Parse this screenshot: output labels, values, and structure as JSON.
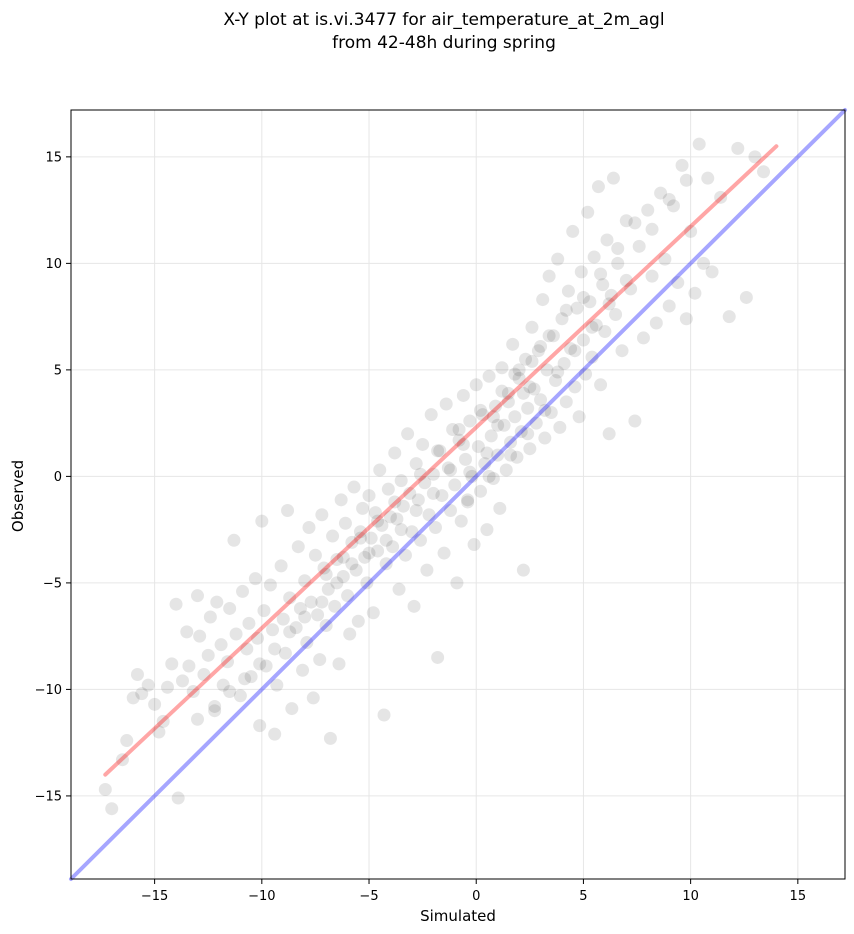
{
  "chart_data": {
    "type": "scatter",
    "title": "X-Y plot at is.vi.3477 for air_temperature_at_2m_agl",
    "subtitle": "from 42-48h during spring",
    "xlabel": "Simulated",
    "ylabel": "Observed",
    "xlim": [
      -18.9,
      17.2
    ],
    "ylim": [
      -18.9,
      17.2
    ],
    "xticks": [
      -15,
      -10,
      -5,
      0,
      5,
      10,
      15
    ],
    "yticks": [
      -15,
      -10,
      -5,
      0,
      5,
      10,
      15
    ],
    "xtick_labels": [
      "−15",
      "−10",
      "−5",
      "0",
      "5",
      "10",
      "15"
    ],
    "ytick_labels": [
      "−15",
      "−10",
      "−5",
      "0",
      "5",
      "10",
      "15"
    ],
    "grid": true,
    "point_color": "#000000",
    "point_alpha": 0.1,
    "points": [
      [
        -17.3,
        -14.7
      ],
      [
        -17.0,
        -15.6
      ],
      [
        -16.5,
        -13.3
      ],
      [
        -16.3,
        -12.4
      ],
      [
        -16.0,
        -10.4
      ],
      [
        -15.8,
        -9.3
      ],
      [
        -15.6,
        -10.2
      ],
      [
        -15.3,
        -9.8
      ],
      [
        -15.0,
        -10.7
      ],
      [
        -14.8,
        -12.0
      ],
      [
        -14.6,
        -11.5
      ],
      [
        -14.4,
        -9.9
      ],
      [
        -14.2,
        -8.8
      ],
      [
        -14.0,
        -6.0
      ],
      [
        -13.9,
        -15.1
      ],
      [
        -13.7,
        -9.6
      ],
      [
        -13.5,
        -7.3
      ],
      [
        -13.4,
        -8.9
      ],
      [
        -13.2,
        -10.1
      ],
      [
        -13.0,
        -5.6
      ],
      [
        -12.9,
        -7.5
      ],
      [
        -12.7,
        -9.3
      ],
      [
        -12.5,
        -8.4
      ],
      [
        -12.4,
        -6.6
      ],
      [
        -12.2,
        -11.0
      ],
      [
        -12.1,
        -5.9
      ],
      [
        -11.9,
        -7.9
      ],
      [
        -11.8,
        -9.8
      ],
      [
        -11.6,
        -8.7
      ],
      [
        -11.5,
        -6.2
      ],
      [
        -11.3,
        -3.0
      ],
      [
        -11.2,
        -7.4
      ],
      [
        -11.0,
        -10.3
      ],
      [
        -10.9,
        -5.4
      ],
      [
        -10.7,
        -8.1
      ],
      [
        -10.6,
        -6.9
      ],
      [
        -10.5,
        -9.4
      ],
      [
        -10.3,
        -4.8
      ],
      [
        -10.2,
        -7.6
      ],
      [
        -10.1,
        -11.7
      ],
      [
        -10.0,
        -2.1
      ],
      [
        -9.9,
        -6.3
      ],
      [
        -9.8,
        -8.9
      ],
      [
        -9.6,
        -5.1
      ],
      [
        -9.5,
        -7.2
      ],
      [
        -9.4,
        -12.1
      ],
      [
        -9.3,
        -9.8
      ],
      [
        -9.1,
        -4.2
      ],
      [
        -9.0,
        -6.7
      ],
      [
        -8.9,
        -8.3
      ],
      [
        -8.8,
        -1.6
      ],
      [
        -8.7,
        -5.7
      ],
      [
        -8.6,
        -10.9
      ],
      [
        -8.4,
        -7.1
      ],
      [
        -8.3,
        -3.3
      ],
      [
        -8.2,
        -6.2
      ],
      [
        -8.1,
        -9.1
      ],
      [
        -8.0,
        -4.9
      ],
      [
        -7.9,
        -7.8
      ],
      [
        -7.8,
        -2.4
      ],
      [
        -7.7,
        -5.9
      ],
      [
        -7.6,
        -10.4
      ],
      [
        -7.5,
        -3.7
      ],
      [
        -7.4,
        -6.5
      ],
      [
        -7.3,
        -8.6
      ],
      [
        -7.2,
        -1.8
      ],
      [
        -7.1,
        -4.3
      ],
      [
        -7.0,
        -7.0
      ],
      [
        -6.9,
        -5.3
      ],
      [
        -6.8,
        -12.3
      ],
      [
        -6.7,
        -2.8
      ],
      [
        -6.6,
        -6.1
      ],
      [
        -6.5,
        -3.9
      ],
      [
        -6.4,
        -8.8
      ],
      [
        -6.3,
        -1.1
      ],
      [
        -6.2,
        -4.7
      ],
      [
        -6.1,
        -2.2
      ],
      [
        -6.0,
        -5.6
      ],
      [
        -5.9,
        -7.4
      ],
      [
        -5.8,
        -3.1
      ],
      [
        -5.7,
        -0.5
      ],
      [
        -5.6,
        -4.4
      ],
      [
        -5.5,
        -6.8
      ],
      [
        -5.4,
        -2.6
      ],
      [
        -5.3,
        -1.5
      ],
      [
        -5.2,
        -3.8
      ],
      [
        -5.1,
        -5.0
      ],
      [
        -5.0,
        -0.9
      ],
      [
        -4.9,
        -2.9
      ],
      [
        -4.8,
        -6.4
      ],
      [
        -4.7,
        -1.7
      ],
      [
        -4.6,
        -3.5
      ],
      [
        -4.5,
        0.3
      ],
      [
        -4.4,
        -2.3
      ],
      [
        -4.3,
        -11.2
      ],
      [
        -4.2,
        -4.1
      ],
      [
        -4.1,
        -0.6
      ],
      [
        -4.0,
        -1.9
      ],
      [
        -3.9,
        -3.3
      ],
      [
        -3.8,
        1.1
      ],
      [
        -3.7,
        -2.0
      ],
      [
        -3.6,
        -5.3
      ],
      [
        -3.5,
        -0.2
      ],
      [
        -3.4,
        -1.4
      ],
      [
        -3.3,
        -3.7
      ],
      [
        -3.2,
        2.0
      ],
      [
        -3.1,
        -0.8
      ],
      [
        -3.0,
        -2.6
      ],
      [
        -2.9,
        -6.1
      ],
      [
        -2.8,
        0.6
      ],
      [
        -2.7,
        -1.1
      ],
      [
        -2.6,
        -3.0
      ],
      [
        -2.5,
        1.5
      ],
      [
        -2.4,
        -0.3
      ],
      [
        -2.3,
        -4.4
      ],
      [
        -2.2,
        -1.8
      ],
      [
        -2.1,
        2.9
      ],
      [
        -2.0,
        0.1
      ],
      [
        -1.9,
        -2.4
      ],
      [
        -1.8,
        -8.5
      ],
      [
        -1.7,
        1.2
      ],
      [
        -1.6,
        -0.9
      ],
      [
        -1.5,
        -3.6
      ],
      [
        -1.4,
        3.4
      ],
      [
        -1.3,
        0.4
      ],
      [
        -1.2,
        -1.6
      ],
      [
        -1.1,
        2.2
      ],
      [
        -1.0,
        -0.4
      ],
      [
        -0.9,
        -5.0
      ],
      [
        -0.8,
        1.7
      ],
      [
        -0.7,
        -2.1
      ],
      [
        -0.6,
        3.8
      ],
      [
        -0.5,
        0.8
      ],
      [
        -0.4,
        -1.2
      ],
      [
        -0.3,
        2.6
      ],
      [
        -0.2,
        0.0
      ],
      [
        -0.1,
        -3.2
      ],
      [
        0.0,
        4.3
      ],
      [
        0.1,
        1.4
      ],
      [
        0.2,
        -0.7
      ],
      [
        0.3,
        2.9
      ],
      [
        0.4,
        0.6
      ],
      [
        0.5,
        -2.5
      ],
      [
        0.6,
        4.7
      ],
      [
        0.7,
        1.9
      ],
      [
        0.8,
        -0.1
      ],
      [
        0.9,
        3.3
      ],
      [
        1.0,
        1.0
      ],
      [
        1.1,
        -1.5
      ],
      [
        1.2,
        5.1
      ],
      [
        1.3,
        2.4
      ],
      [
        1.4,
        0.3
      ],
      [
        1.5,
        3.9
      ],
      [
        1.6,
        1.6
      ],
      [
        1.7,
        6.2
      ],
      [
        1.8,
        2.8
      ],
      [
        1.9,
        0.9
      ],
      [
        2.0,
        4.6
      ],
      [
        2.1,
        2.1
      ],
      [
        2.2,
        -4.4
      ],
      [
        2.3,
        5.5
      ],
      [
        2.4,
        3.2
      ],
      [
        2.5,
        1.3
      ],
      [
        2.6,
        7.0
      ],
      [
        2.7,
        4.1
      ],
      [
        2.8,
        2.5
      ],
      [
        2.9,
        5.9
      ],
      [
        3.0,
        3.6
      ],
      [
        3.1,
        8.3
      ],
      [
        3.2,
        1.8
      ],
      [
        3.3,
        5.0
      ],
      [
        3.4,
        9.4
      ],
      [
        3.5,
        3.0
      ],
      [
        3.6,
        6.6
      ],
      [
        3.7,
        4.5
      ],
      [
        3.8,
        10.2
      ],
      [
        3.9,
        2.3
      ],
      [
        4.0,
        7.4
      ],
      [
        4.1,
        5.3
      ],
      [
        4.2,
        3.5
      ],
      [
        4.3,
        8.7
      ],
      [
        4.4,
        6.0
      ],
      [
        4.5,
        11.5
      ],
      [
        4.6,
        4.2
      ],
      [
        4.7,
        7.9
      ],
      [
        4.8,
        2.8
      ],
      [
        4.9,
        9.6
      ],
      [
        5.0,
        6.4
      ],
      [
        5.1,
        4.8
      ],
      [
        5.2,
        12.4
      ],
      [
        5.3,
        8.2
      ],
      [
        5.4,
        5.6
      ],
      [
        5.5,
        10.3
      ],
      [
        5.6,
        7.1
      ],
      [
        5.7,
        13.6
      ],
      [
        5.8,
        4.3
      ],
      [
        5.9,
        9.0
      ],
      [
        6.0,
        6.8
      ],
      [
        6.1,
        11.1
      ],
      [
        6.2,
        2.0
      ],
      [
        6.3,
        8.5
      ],
      [
        6.4,
        14.0
      ],
      [
        6.5,
        7.6
      ],
      [
        6.6,
        10.0
      ],
      [
        6.8,
        5.9
      ],
      [
        7.0,
        12.0
      ],
      [
        7.2,
        8.8
      ],
      [
        7.4,
        2.6
      ],
      [
        7.6,
        10.8
      ],
      [
        7.8,
        6.5
      ],
      [
        8.0,
        12.5
      ],
      [
        8.2,
        9.4
      ],
      [
        8.4,
        7.2
      ],
      [
        8.6,
        13.3
      ],
      [
        8.8,
        10.2
      ],
      [
        9.0,
        8.0
      ],
      [
        9.2,
        12.7
      ],
      [
        9.4,
        9.1
      ],
      [
        9.6,
        14.6
      ],
      [
        9.8,
        7.4
      ],
      [
        10.0,
        11.5
      ],
      [
        10.2,
        8.6
      ],
      [
        10.4,
        15.6
      ],
      [
        10.6,
        10.0
      ],
      [
        10.8,
        14.0
      ],
      [
        11.0,
        9.6
      ],
      [
        11.4,
        13.1
      ],
      [
        11.8,
        7.5
      ],
      [
        12.2,
        15.4
      ],
      [
        12.6,
        8.4
      ],
      [
        13.0,
        15.0
      ],
      [
        13.4,
        14.3
      ],
      [
        -0.3,
        0.2
      ],
      [
        0.5,
        1.1
      ],
      [
        1.0,
        2.4
      ],
      [
        1.5,
        3.5
      ],
      [
        2.0,
        5.0
      ],
      [
        2.5,
        4.2
      ],
      [
        3.0,
        6.1
      ],
      [
        1.8,
        4.8
      ],
      [
        2.2,
        3.9
      ],
      [
        0.8,
        2.8
      ],
      [
        -0.6,
        1.5
      ],
      [
        -1.2,
        0.3
      ],
      [
        -2.0,
        -0.8
      ],
      [
        -2.8,
        -1.6
      ],
      [
        -3.5,
        -2.5
      ],
      [
        -4.2,
        -3.0
      ],
      [
        -5.0,
        -3.6
      ],
      [
        -5.8,
        -4.1
      ],
      [
        -6.5,
        -5.0
      ],
      [
        -7.2,
        -5.9
      ],
      [
        -8.0,
        -6.6
      ],
      [
        -8.7,
        -7.3
      ],
      [
        -9.4,
        -8.1
      ],
      [
        -10.1,
        -8.8
      ],
      [
        -10.8,
        -9.5
      ],
      [
        -11.5,
        -10.1
      ],
      [
        -12.2,
        -10.8
      ],
      [
        -13.0,
        -11.4
      ],
      [
        2.6,
        5.4
      ],
      [
        3.4,
        6.6
      ],
      [
        4.2,
        7.8
      ],
      [
        5.0,
        8.4
      ],
      [
        5.8,
        9.5
      ],
      [
        6.6,
        10.7
      ],
      [
        7.4,
        11.9
      ],
      [
        8.2,
        11.6
      ],
      [
        9.0,
        13.0
      ],
      [
        9.8,
        13.9
      ],
      [
        0.2,
        3.1
      ],
      [
        1.2,
        4.0
      ],
      [
        -0.8,
        2.2
      ],
      [
        -1.8,
        1.2
      ],
      [
        -2.6,
        0.1
      ],
      [
        -3.8,
        -1.2
      ],
      [
        -4.6,
        -2.1
      ],
      [
        -5.4,
        -2.9
      ],
      [
        -6.2,
        -3.8
      ],
      [
        -7.0,
        -4.6
      ],
      [
        3.8,
        4.9
      ],
      [
        4.6,
        5.9
      ],
      [
        5.4,
        7.0
      ],
      [
        6.2,
        8.1
      ],
      [
        7.0,
        9.2
      ],
      [
        2.4,
        2.0
      ],
      [
        3.2,
        3.1
      ],
      [
        1.6,
        1.0
      ],
      [
        0.6,
        0.0
      ],
      [
        -0.4,
        -1.1
      ]
    ],
    "series": [
      {
        "type": "line",
        "color": "#ff0000",
        "alpha": 0.35,
        "x": [
          -17.3,
          14.0
        ],
        "y": [
          -14.0,
          15.5
        ]
      },
      {
        "type": "line",
        "color": "#0000ff",
        "alpha": 0.35,
        "x": [
          -18.9,
          17.2
        ],
        "y": [
          -18.9,
          17.2
        ]
      }
    ]
  }
}
